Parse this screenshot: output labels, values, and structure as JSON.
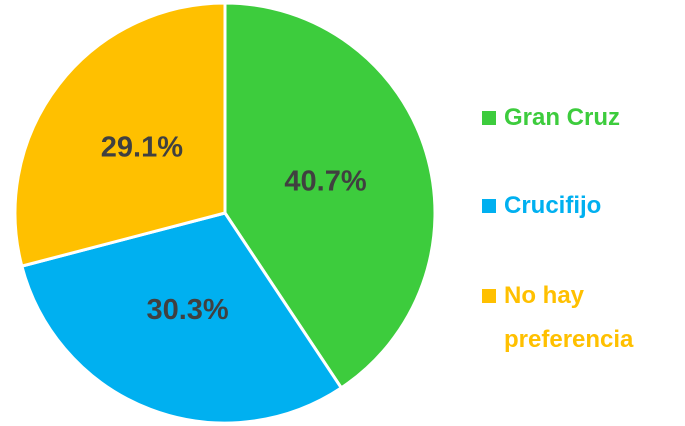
{
  "chart_data": {
    "type": "pie",
    "categories": [
      "Gran Cruz",
      "Crucifijo",
      "No hay preferencia"
    ],
    "values": [
      40.7,
      30.3,
      29.1
    ],
    "value_labels": [
      "40.7%",
      "30.3%",
      "29.1%"
    ],
    "colors": [
      "#3dcc3d",
      "#00b0f0",
      "#ffc000"
    ],
    "legend": "right"
  }
}
